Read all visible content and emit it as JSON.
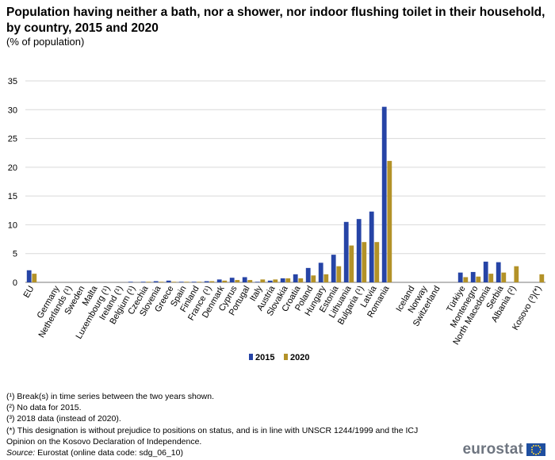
{
  "chart_data": {
    "type": "bar",
    "title": "Population having neither a bath, nor a shower, nor indoor flushing toilet in their household, by country, 2015 and 2020",
    "subtitle": "(% of population)",
    "xlabel": "",
    "ylabel": "",
    "ylim": [
      0,
      35
    ],
    "yticks": [
      0,
      5,
      10,
      15,
      20,
      25,
      30,
      35
    ],
    "grid": true,
    "legend_position": "bottom-center",
    "categories": [
      "EU",
      "",
      "Germany",
      "Netherlands (¹)",
      "Sweden",
      "Malta",
      "Luxembourg (¹)",
      "Ireland (¹)",
      "Belgium (¹)",
      "Czechia",
      "Slovenia",
      "Greece",
      "Spain",
      "Finland",
      "France (¹)",
      "Denmark",
      "Cyprus",
      "Portugal",
      "Italy",
      "Austria",
      "Slovakia",
      "Croatia",
      "Poland",
      "Hungary",
      "Estonia",
      "Lithuania",
      "Bulgaria (¹)",
      "Latvia",
      "Romania",
      "",
      "Iceland",
      "Norway",
      "Switzerland",
      "",
      "Türkiye",
      "Montenegro",
      "North Macedonia",
      "Serbia",
      "Albania (²)",
      "",
      "Kosovo (³)(*)"
    ],
    "series": [
      {
        "name": "2015",
        "color": "#2644a6",
        "values": [
          2.1,
          null,
          0.0,
          0.0,
          0.0,
          0.0,
          0.0,
          0.0,
          0.1,
          0.1,
          0.2,
          0.3,
          0.1,
          0.1,
          0.2,
          0.5,
          0.8,
          0.9,
          0.1,
          0.3,
          0.7,
          1.4,
          2.5,
          3.4,
          4.8,
          10.5,
          11.0,
          12.3,
          30.5,
          null,
          0.0,
          0.0,
          0.0,
          null,
          1.7,
          1.8,
          3.6,
          3.5,
          null,
          null,
          null
        ]
      },
      {
        "name": "2020",
        "color": "#b39228",
        "values": [
          1.5,
          null,
          0.0,
          0.0,
          0.0,
          0.0,
          0.0,
          0.0,
          0.0,
          0.1,
          0.1,
          0.1,
          0.1,
          0.1,
          0.2,
          0.3,
          0.4,
          0.4,
          0.5,
          0.5,
          0.7,
          0.7,
          1.2,
          1.4,
          2.8,
          6.4,
          7.0,
          7.0,
          21.1,
          null,
          0.0,
          0.0,
          0.0,
          null,
          0.9,
          1.0,
          1.5,
          1.7,
          2.8,
          null,
          1.4
        ]
      }
    ]
  },
  "footnotes": [
    "(¹) Break(s) in time series between the two years shown.",
    "(²) No data for 2015.",
    "(³) 2018 data (instead of 2020).",
    "(*) This designation is without prejudice to positions on status, and is in line with UNSCR 1244/1999 and the ICJ",
    "Opinion on the Kosovo Declaration of Independence."
  ],
  "source": {
    "label": "Source:",
    "text": " Eurostat (online data code: sdg_06_10)"
  },
  "logo": {
    "text": "eurostat",
    "icon": "eu-flag-icon"
  }
}
